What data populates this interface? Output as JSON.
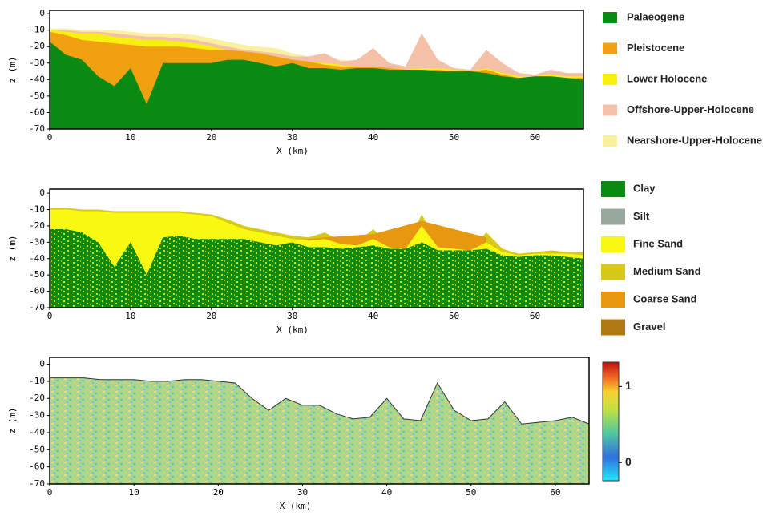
{
  "chart_data": [
    {
      "type": "area",
      "xlabel": "X (km)",
      "ylabel": "z (m)",
      "xlim": [
        0,
        66
      ],
      "ylim": [
        -70,
        2
      ],
      "xticks": [
        0,
        10,
        20,
        30,
        40,
        50,
        60
      ],
      "yticks": [
        0,
        -10,
        -20,
        -30,
        -40,
        -50,
        -60,
        -70
      ],
      "x": [
        0,
        2,
        4,
        6,
        8,
        10,
        12,
        14,
        16,
        18,
        20,
        22,
        24,
        26,
        28,
        30,
        32,
        34,
        36,
        38,
        40,
        42,
        44,
        46,
        48,
        50,
        52,
        54,
        56,
        58,
        60,
        62,
        64,
        66
      ],
      "series": [
        {
          "name": "Palaeogene",
          "color": "#0a8a12",
          "values": [
            -17,
            -25,
            -28,
            -38,
            -44,
            -33,
            -55,
            -30,
            -30,
            -30,
            -30,
            -28,
            -28,
            -30,
            -32,
            -30,
            -33,
            -33,
            -34,
            -33,
            -33,
            -34,
            -34,
            -34,
            -35,
            -35,
            -35,
            -36,
            -38,
            -39,
            -38,
            -38,
            -39,
            -40
          ]
        },
        {
          "name": "Pleistocene",
          "color": "#f0a010",
          "values": [
            -11,
            -13,
            -16,
            -17,
            -18,
            -19,
            -20,
            -20,
            -20,
            -21,
            -22,
            -22,
            -23,
            -24,
            -26,
            -28,
            -29,
            -31,
            -32,
            -32,
            -32,
            -33,
            -34,
            -34,
            -34,
            -35,
            -35,
            -34,
            -37,
            -39,
            -38,
            -38,
            -39,
            -39
          ]
        },
        {
          "name": "Lower Holocene",
          "color": "#f8f010",
          "values": [
            -10,
            -11,
            -12,
            -12,
            -14,
            -15,
            -16,
            -16,
            -17,
            -18,
            -20,
            -22,
            -24,
            -25,
            -26,
            -28,
            -29,
            -30,
            -31,
            -32,
            -32,
            -33,
            -34,
            -33,
            -33,
            -34,
            -35,
            -33,
            -36,
            -38,
            -38,
            -37,
            -38,
            -38
          ]
        },
        {
          "name": "Offshore-Upper-Holocene",
          "color": "#f4c0a8",
          "values": [
            -10,
            -10,
            -11,
            -11,
            -12,
            -13,
            -14,
            -14,
            -15,
            -16,
            -18,
            -20,
            -22,
            -23,
            -24,
            -26,
            -26,
            -24,
            -29,
            -28,
            -21,
            -30,
            -32,
            -12,
            -28,
            -33,
            -34,
            -22,
            -30,
            -36,
            -37,
            -34,
            -36,
            -36
          ]
        },
        {
          "name": "Nearshore-Upper-Holocene",
          "color": "#faf0a0",
          "values": [
            -9,
            -9,
            -10,
            -10,
            -10,
            -11,
            -12,
            -12,
            -12,
            -13,
            -15,
            -17,
            -19,
            -20,
            -21,
            -24,
            -26,
            -27,
            -28,
            -29,
            -30,
            -31,
            -32,
            -33,
            -34,
            -35,
            -35,
            -36,
            -36,
            -37,
            -37,
            -38,
            -37,
            -37
          ]
        }
      ]
    },
    {
      "type": "area",
      "xlabel": "X (km)",
      "ylabel": "z (m)",
      "xlim": [
        0,
        66
      ],
      "ylim": [
        -70,
        2.5
      ],
      "xticks": [
        0,
        10,
        20,
        30,
        40,
        50,
        60
      ],
      "yticks": [
        0,
        -10,
        -20,
        -30,
        -40,
        -50,
        -60,
        -70
      ],
      "x": [
        0,
        2,
        4,
        6,
        8,
        10,
        12,
        14,
        16,
        18,
        20,
        22,
        24,
        26,
        28,
        30,
        32,
        34,
        36,
        38,
        40,
        42,
        44,
        46,
        48,
        50,
        52,
        54,
        56,
        58,
        60,
        62,
        64,
        66
      ],
      "series": [
        {
          "name": "Clay",
          "color": "#0a8a12",
          "values": [
            -22,
            -22,
            -24,
            -30,
            -45,
            -30,
            -50,
            -27,
            -26,
            -28,
            -28,
            -28,
            -28,
            -30,
            -32,
            -30,
            -33,
            -33,
            -34,
            -33,
            -32,
            -34,
            -34,
            -30,
            -35,
            -35,
            -35,
            -34,
            -38,
            -39,
            -38,
            -38,
            -39,
            -40
          ]
        },
        {
          "name": "Silt",
          "color": "#98a89c",
          "values": [
            null,
            null,
            null,
            null,
            null,
            null,
            null,
            null,
            null,
            null,
            null,
            null,
            null,
            null,
            null,
            null,
            null,
            null,
            null,
            null,
            null,
            null,
            null,
            null,
            null,
            null,
            null,
            null,
            null,
            null,
            null,
            null,
            null,
            null
          ]
        },
        {
          "name": "Fine Sand",
          "color": "#f8f810",
          "values": [
            -10,
            -10,
            -11,
            -11,
            -12,
            -12,
            -12,
            -12,
            -12,
            -13,
            -14,
            -18,
            -22,
            -24,
            -26,
            -28,
            -29,
            -28,
            -31,
            -32,
            -28,
            -33,
            -34,
            -20,
            -33,
            -34,
            -35,
            -30,
            -36,
            -38,
            -37,
            -37,
            -37,
            -38
          ]
        },
        {
          "name": "Medium Sand",
          "color": "#d8c818",
          "values": [
            -9,
            -9,
            -10,
            -10,
            -11,
            -11,
            -11,
            -11,
            -11,
            -12,
            -13,
            -16,
            -20,
            -22,
            -24,
            -26,
            -27,
            -24,
            -29,
            -30,
            -22,
            -31,
            -33,
            -13,
            -30,
            -33,
            -34,
            -24,
            -34,
            -37,
            -36,
            -35,
            -36,
            -36
          ]
        },
        {
          "name": "Coarse Sand",
          "color": "#e89810",
          "values": [
            null,
            null,
            null,
            null,
            null,
            null,
            null,
            null,
            null,
            null,
            null,
            null,
            -24,
            -25,
            -27,
            -29,
            null,
            -27,
            null,
            null,
            -25,
            null,
            null,
            -17,
            null,
            null,
            null,
            -27,
            null,
            null,
            null,
            null,
            null,
            null
          ]
        },
        {
          "name": "Gravel",
          "color": "#b07810",
          "values": [
            null,
            null,
            null,
            null,
            null,
            null,
            null,
            null,
            null,
            null,
            null,
            null,
            null,
            null,
            null,
            null,
            null,
            null,
            null,
            null,
            null,
            null,
            null,
            null,
            null,
            null,
            null,
            null,
            null,
            null,
            null,
            null,
            null,
            null
          ]
        }
      ]
    },
    {
      "type": "colormap",
      "xlabel": "X (km)",
      "ylabel": "z (m)",
      "xlim": [
        0,
        64
      ],
      "ylim": [
        -70,
        4
      ],
      "xticks": [
        0,
        10,
        20,
        30,
        40,
        50,
        60
      ],
      "yticks": [
        0,
        -10,
        -20,
        -30,
        -40,
        -50,
        -60,
        -70
      ],
      "x": [
        0,
        2,
        4,
        6,
        8,
        10,
        12,
        14,
        16,
        18,
        20,
        22,
        24,
        26,
        28,
        30,
        32,
        34,
        36,
        38,
        40,
        42,
        44,
        46,
        48,
        50,
        52,
        54,
        56,
        58,
        60,
        62,
        64
      ],
      "values": [
        -8,
        -8,
        -8,
        -9,
        -9,
        -9,
        -10,
        -10,
        -9,
        -9,
        -10,
        -11,
        -20,
        -27,
        -20,
        -24,
        -24,
        -29,
        -32,
        -31,
        -20,
        -32,
        -33,
        -11,
        -27,
        -33,
        -32,
        -22,
        -35,
        -34,
        -33,
        -31,
        -35
      ],
      "clim": [
        -0.24,
        1.32
      ],
      "cticks": [
        0,
        1
      ]
    }
  ]
}
